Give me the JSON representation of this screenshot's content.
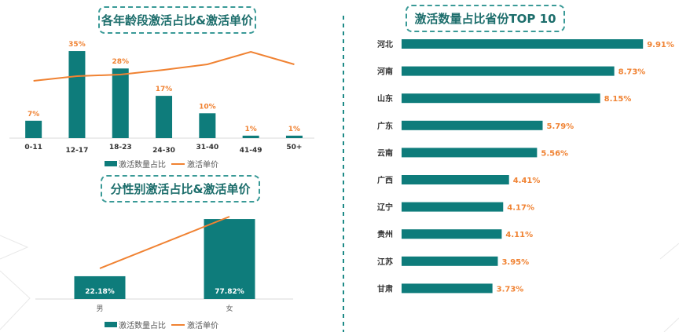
{
  "colors": {
    "bar": "#0e7c7b",
    "line": "#f08232",
    "label": "#f08232",
    "axis": "#d9d9d9"
  },
  "chart_data": [
    {
      "type": "bar+line",
      "title": "各年龄段激活占比&激活单价",
      "categories": [
        "0-11",
        "12-17",
        "18-23",
        "24-30",
        "31-40",
        "41-49",
        "50+"
      ],
      "series": [
        {
          "name": "激活数量占比",
          "type": "bar",
          "values": [
            7,
            35,
            28,
            17,
            10,
            1,
            1
          ],
          "labels": [
            "7%",
            "35%",
            "28%",
            "17%",
            "10%",
            "1%",
            "1%"
          ]
        },
        {
          "name": "激活单价",
          "type": "line",
          "values": [
            73,
            79,
            81,
            87,
            94,
            110,
            94
          ],
          "note_relative_scale": true
        }
      ],
      "legend": "bottom"
    },
    {
      "type": "bar+line",
      "title": "分性别激活占比&激活单价",
      "categories": [
        "男",
        "女"
      ],
      "series": [
        {
          "name": "激活数量占比",
          "type": "bar",
          "values": [
            22.18,
            77.82
          ],
          "labels": [
            "22.18%",
            "77.82%"
          ]
        },
        {
          "name": "激活单价",
          "type": "line",
          "values": [
            39,
            105
          ],
          "note_relative_scale": true
        }
      ],
      "legend": "bottom"
    },
    {
      "type": "bar",
      "orientation": "horizontal",
      "title": "激活数量占比省份TOP 10",
      "categories": [
        "河北",
        "河南",
        "山东",
        "广东",
        "云南",
        "广西",
        "辽宁",
        "贵州",
        "江苏",
        "甘肃"
      ],
      "values": [
        9.91,
        8.73,
        8.15,
        5.79,
        5.56,
        4.41,
        4.17,
        4.11,
        3.95,
        3.73
      ],
      "labels": [
        "9.91%",
        "8.73%",
        "8.15%",
        "5.79%",
        "5.56%",
        "4.41%",
        "4.17%",
        "4.11%",
        "3.95%",
        "3.73%"
      ]
    }
  ]
}
